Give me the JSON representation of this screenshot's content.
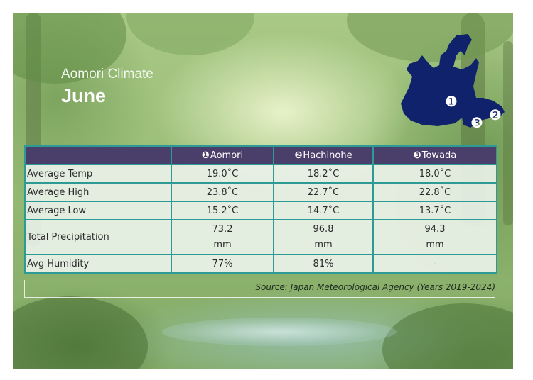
{
  "header": {
    "subtitle": "Aomori Climate",
    "title": "June"
  },
  "map": {
    "markers": [
      "❶",
      "❷",
      "❸"
    ],
    "fill_color": "#10226b"
  },
  "table": {
    "columns": [
      {
        "marker": "❶",
        "name": "Aomori"
      },
      {
        "marker": "❷",
        "name": "Hachinohe"
      },
      {
        "marker": "❸",
        "name": "Towada"
      }
    ],
    "rows": [
      {
        "label": "Average Temp",
        "values": [
          "19.0˚C",
          "18.2˚C",
          "18.0˚C"
        ]
      },
      {
        "label": "Average High",
        "values": [
          "23.8˚C",
          "22.7˚C",
          "22.8˚C"
        ]
      },
      {
        "label": "Average Low",
        "values": [
          "15.2˚C",
          "14.7˚C",
          "13.7˚C"
        ]
      },
      {
        "label": "Total Precipitation",
        "values": [
          [
            "73.2",
            "mm"
          ],
          [
            "96.8",
            "mm"
          ],
          [
            "94.3",
            "mm"
          ]
        ]
      },
      {
        "label": "Avg Humidity",
        "values": [
          "77%",
          "81%",
          "-"
        ]
      }
    ]
  },
  "source": "Source: Japan Meteorological Agency (Years 2019-2024)",
  "colors": {
    "header_bg": "#4a3f6b",
    "border": "#2e9a96",
    "map": "#10226b"
  }
}
